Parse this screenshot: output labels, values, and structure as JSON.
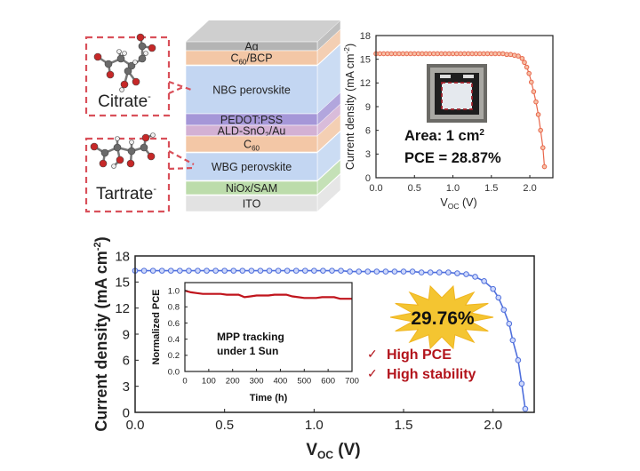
{
  "device_stack": {
    "layers": [
      {
        "main": "Ag",
        "sub": "",
        "rest": "",
        "color": "#b4b4b4"
      },
      {
        "main": "C",
        "sub": "60",
        "rest": "/BCP",
        "color": "#f3c7a6"
      },
      {
        "main": "NBG perovskite",
        "sub": "",
        "rest": "",
        "color": "#c3d6f2"
      },
      {
        "main": "PEDOT:PSS",
        "sub": "",
        "rest": "",
        "color": "#a597d8"
      },
      {
        "main": "ALD-SnO",
        "sub": "2",
        "rest": "/Au",
        "color": "#d3b1d4"
      },
      {
        "main": "C",
        "sub": "60",
        "rest": "",
        "color": "#f3c7a6"
      },
      {
        "main": "WBG perovskite",
        "sub": "",
        "rest": "",
        "color": "#c3d6f2"
      },
      {
        "main": "NiOx/SAM",
        "sub": "",
        "rest": "",
        "color": "#bcdcab"
      },
      {
        "main": "ITO",
        "sub": "",
        "rest": "",
        "color": "#e2e2e2"
      }
    ],
    "molecules": [
      {
        "name": "Citrate",
        "charge": "-"
      },
      {
        "name": "Tartrate",
        "charge": "-"
      }
    ],
    "callout_color": "#d9505a"
  },
  "chart_data": [
    {
      "type": "line",
      "xlabel_main": "V",
      "xlabel_sub": "OC",
      "xlabel_rest": " (V)",
      "ylabel_main": "Current density (mA cm",
      "ylabel_sup": "-2",
      "ylabel_rest": ")",
      "xlim": [
        0,
        2.3
      ],
      "ylim": [
        0,
        18
      ],
      "xticks": [
        "0.0",
        "0.5",
        "1.0",
        "1.5",
        "2.0"
      ],
      "xtick_values": [
        0,
        0.5,
        1,
        1.5,
        2
      ],
      "yticks": [
        "0",
        "3",
        "6",
        "9",
        "12",
        "15",
        "18"
      ],
      "ytick_values": [
        0,
        3,
        6,
        9,
        12,
        15,
        18
      ],
      "color": "#e8664a",
      "annotation_area": "Area: 1 cm",
      "annotation_area_sup": "2",
      "annotation_pce": "PCE = 28.87%",
      "x": [
        0,
        0.05,
        0.1,
        0.15,
        0.2,
        0.25,
        0.3,
        0.35,
        0.4,
        0.45,
        0.5,
        0.55,
        0.6,
        0.65,
        0.7,
        0.75,
        0.8,
        0.85,
        0.9,
        0.95,
        1.0,
        1.05,
        1.1,
        1.15,
        1.2,
        1.25,
        1.3,
        1.35,
        1.4,
        1.45,
        1.5,
        1.55,
        1.6,
        1.65,
        1.7,
        1.75,
        1.8,
        1.85,
        1.9,
        1.93,
        1.96,
        1.99,
        2.02,
        2.05,
        2.08,
        2.11,
        2.14,
        2.17,
        2.19
      ],
      "y": [
        15.7,
        15.7,
        15.7,
        15.7,
        15.7,
        15.7,
        15.7,
        15.7,
        15.7,
        15.7,
        15.7,
        15.7,
        15.7,
        15.7,
        15.7,
        15.7,
        15.7,
        15.7,
        15.7,
        15.7,
        15.7,
        15.7,
        15.7,
        15.7,
        15.7,
        15.7,
        15.7,
        15.7,
        15.7,
        15.7,
        15.7,
        15.7,
        15.7,
        15.7,
        15.6,
        15.6,
        15.5,
        15.4,
        15.1,
        14.6,
        14.0,
        13.2,
        12.1,
        10.9,
        9.6,
        8.0,
        6.0,
        3.8,
        1.4
      ]
    },
    {
      "type": "line",
      "xlabel_main": "V",
      "xlabel_sub": "OC",
      "xlabel_rest": " (V)",
      "ylabel_main": "Current density (mA cm",
      "ylabel_sup": "-2",
      "ylabel_rest": ")",
      "xlim": [
        0,
        2.23
      ],
      "ylim": [
        0,
        18
      ],
      "xticks": [
        "0.0",
        "0.5",
        "1.0",
        "1.5",
        "2.0"
      ],
      "xtick_values": [
        0,
        0.5,
        1,
        1.5,
        2
      ],
      "yticks": [
        "0",
        "3",
        "6",
        "9",
        "12",
        "15",
        "18"
      ],
      "ytick_values": [
        0,
        3,
        6,
        9,
        12,
        15,
        18
      ],
      "color": "#4f6fdc",
      "annotation_pce": "29.76%",
      "highlights": [
        "High PCE",
        "High stability"
      ],
      "check_symbol": "✓",
      "highlight_color": "#b3141c",
      "x": [
        0,
        0.05,
        0.1,
        0.15,
        0.2,
        0.25,
        0.3,
        0.35,
        0.4,
        0.45,
        0.5,
        0.55,
        0.6,
        0.65,
        0.7,
        0.75,
        0.8,
        0.85,
        0.9,
        0.95,
        1.0,
        1.05,
        1.1,
        1.15,
        1.2,
        1.25,
        1.3,
        1.35,
        1.4,
        1.45,
        1.5,
        1.55,
        1.6,
        1.65,
        1.7,
        1.75,
        1.8,
        1.85,
        1.9,
        1.95,
        2.0,
        2.03,
        2.06,
        2.09,
        2.11,
        2.14,
        2.16,
        2.18
      ],
      "y": [
        16.3,
        16.3,
        16.3,
        16.3,
        16.3,
        16.3,
        16.3,
        16.3,
        16.3,
        16.3,
        16.3,
        16.3,
        16.3,
        16.3,
        16.3,
        16.3,
        16.3,
        16.3,
        16.3,
        16.3,
        16.3,
        16.3,
        16.3,
        16.3,
        16.2,
        16.2,
        16.2,
        16.2,
        16.2,
        16.2,
        16.2,
        16.2,
        16.1,
        16.1,
        16.1,
        16.1,
        16.0,
        15.9,
        15.6,
        15.1,
        14.2,
        13.2,
        11.8,
        10.2,
        8.3,
        6.0,
        3.3,
        0.4
      ]
    },
    {
      "type": "line",
      "xlabel": "Time (h)",
      "ylabel": "Normalized PCE",
      "xlim": [
        0,
        700
      ],
      "ylim": [
        0,
        1.1
      ],
      "xticks": [
        "0",
        "100",
        "200",
        "300",
        "400",
        "500",
        "600",
        "700"
      ],
      "xtick_values": [
        0,
        100,
        200,
        300,
        400,
        500,
        600,
        700
      ],
      "yticks": [
        "0.0",
        "0.2",
        "0.4",
        "0.6",
        "0.8",
        "1.0"
      ],
      "ytick_values": [
        0,
        0.2,
        0.4,
        0.6,
        0.8,
        1.0
      ],
      "color": "#c0141c",
      "annotation": [
        "MPP tracking",
        "under 1 Sun"
      ],
      "x": [
        0,
        25,
        50,
        75,
        100,
        125,
        150,
        175,
        200,
        225,
        250,
        275,
        300,
        325,
        350,
        375,
        400,
        425,
        450,
        475,
        500,
        525,
        550,
        575,
        600,
        625,
        650,
        675,
        700
      ],
      "y": [
        1.0,
        0.98,
        0.97,
        0.96,
        0.96,
        0.96,
        0.96,
        0.95,
        0.95,
        0.95,
        0.92,
        0.93,
        0.94,
        0.94,
        0.94,
        0.95,
        0.95,
        0.95,
        0.93,
        0.92,
        0.91,
        0.91,
        0.91,
        0.92,
        0.92,
        0.92,
        0.9,
        0.9,
        0.9
      ]
    }
  ]
}
